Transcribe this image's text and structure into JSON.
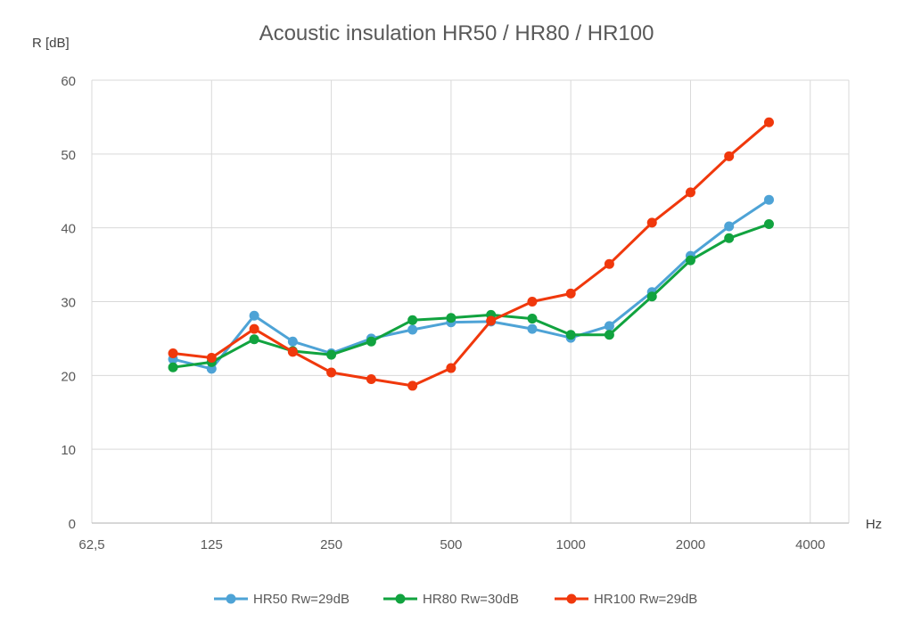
{
  "chart_data": {
    "type": "line",
    "title": "Acoustic insulation HR50 / HR80 / HR100",
    "ylabel": "R [dB]",
    "xlabel": "Hz",
    "x_scale": "log2",
    "xlim": [
      62.5,
      5000
    ],
    "ylim": [
      0,
      60
    ],
    "x_ticks": [
      62.5,
      125,
      250,
      500,
      1000,
      2000,
      4000
    ],
    "x_tick_labels": [
      "62,5",
      "125",
      "250",
      "500",
      "1000",
      "2000",
      "4000"
    ],
    "y_ticks": [
      0,
      10,
      20,
      30,
      40,
      50,
      60
    ],
    "y_tick_labels": [
      "0",
      "10",
      "20",
      "30",
      "40",
      "50",
      "60"
    ],
    "grid": true,
    "legend_position": "bottom",
    "x": [
      100,
      125,
      160,
      200,
      250,
      315,
      400,
      500,
      630,
      800,
      1000,
      1250,
      1600,
      2000,
      2500,
      3150
    ],
    "series": [
      {
        "name": "HR50 Rw=29dB",
        "color": "#4ea3d6",
        "values": [
          22.2,
          20.9,
          28.1,
          24.6,
          23.0,
          25.0,
          26.2,
          27.2,
          27.3,
          26.3,
          25.1,
          26.7,
          31.3,
          36.2,
          40.2,
          43.8
        ]
      },
      {
        "name": "HR80 Rw=30dB",
        "color": "#11a33f",
        "values": [
          21.1,
          21.8,
          24.9,
          23.3,
          22.8,
          24.6,
          27.5,
          27.8,
          28.2,
          27.7,
          25.5,
          25.5,
          30.7,
          35.6,
          38.6,
          40.5
        ]
      },
      {
        "name": "HR100 Rw=29dB",
        "color": "#f0380c",
        "values": [
          23.0,
          22.4,
          26.3,
          23.2,
          20.4,
          19.5,
          18.6,
          21.0,
          27.4,
          30.0,
          31.1,
          35.1,
          40.7,
          44.8,
          49.7,
          54.3
        ]
      }
    ]
  }
}
